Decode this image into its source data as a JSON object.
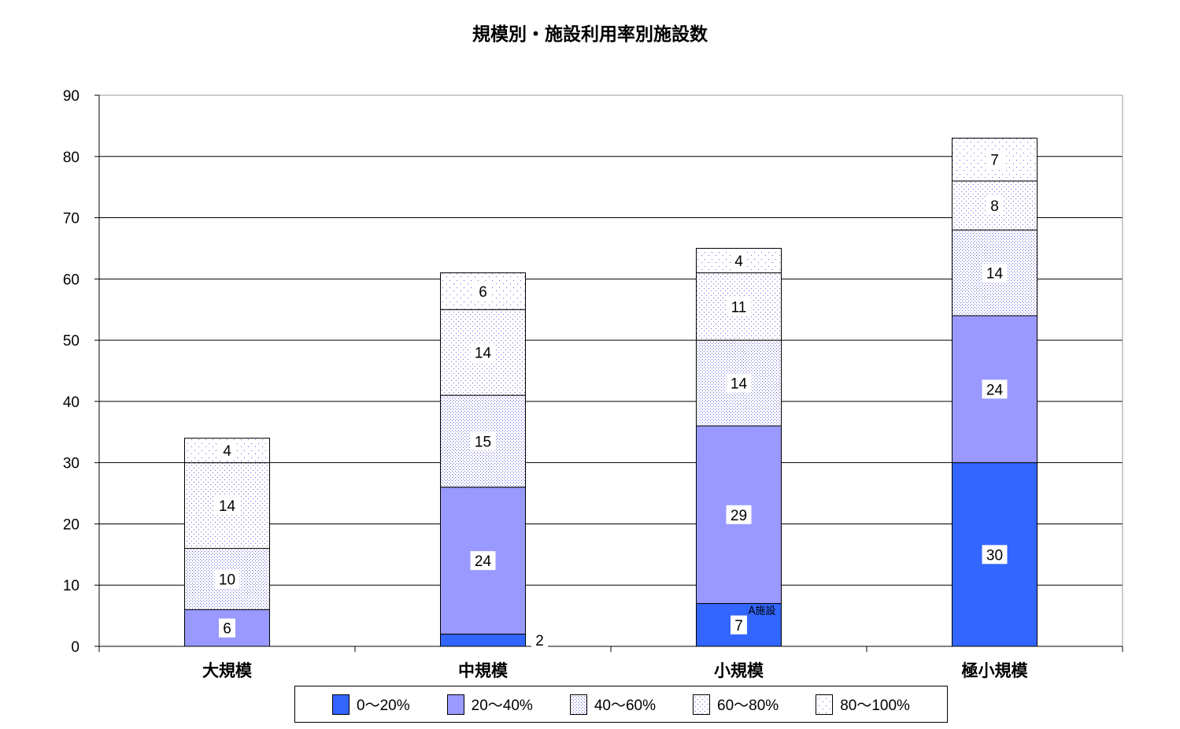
{
  "chart_data": {
    "type": "bar",
    "stacked": true,
    "title": "規模別・施設利用率別施設数",
    "xlabel": "",
    "ylabel": "",
    "ylim": [
      0,
      90
    ],
    "yticks": [
      "0",
      "10",
      "20",
      "30",
      "40",
      "50",
      "60",
      "70",
      "80",
      "90"
    ],
    "grid": true,
    "legend_position": "bottom",
    "categories": [
      "大規模",
      "中規模",
      "小規模",
      "極小規模"
    ],
    "series": [
      {
        "name": "0～20%",
        "values": [
          0,
          2,
          7,
          30
        ],
        "color": "#3366ff",
        "pattern": "solid"
      },
      {
        "name": "20～40%",
        "values": [
          6,
          24,
          29,
          24
        ],
        "color": "#9999ff",
        "pattern": "solid"
      },
      {
        "name": "40～60%",
        "values": [
          10,
          15,
          14,
          14
        ],
        "color": "#6666dd",
        "pattern": "dense-dots"
      },
      {
        "name": "60～80%",
        "values": [
          14,
          14,
          11,
          8
        ],
        "color": "#6666dd",
        "pattern": "medium-dots"
      },
      {
        "name": "80～100%",
        "values": [
          4,
          6,
          4,
          7
        ],
        "color": "#6666dd",
        "pattern": "sparse-dots"
      }
    ],
    "annotations": [
      {
        "text": "A施設",
        "category": "小規模"
      }
    ]
  }
}
